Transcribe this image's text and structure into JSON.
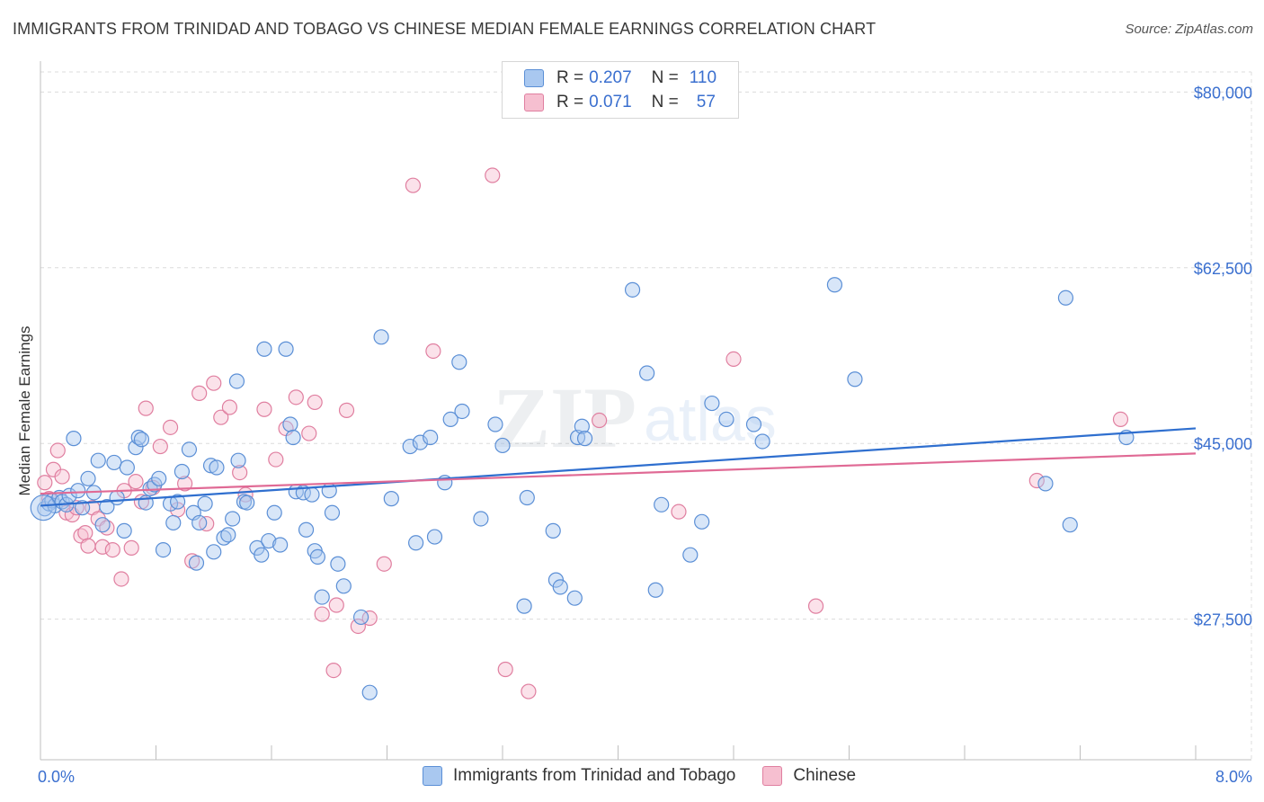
{
  "header": {
    "title": "IMMIGRANTS FROM TRINIDAD AND TOBAGO VS CHINESE MEDIAN FEMALE EARNINGS CORRELATION CHART",
    "source": "Source: ZipAtlas.com"
  },
  "legend": {
    "rows": [
      {
        "r_label": "R =",
        "r_value": "0.207",
        "n_label": "N =",
        "n_value": "110"
      },
      {
        "r_label": "R =",
        "r_value": "0.071",
        "n_label": "N =",
        "n_value": "57"
      }
    ]
  },
  "watermark": {
    "zip": "ZIP",
    "atlas": "atlas"
  },
  "chart_data": {
    "type": "scatter",
    "title": "IMMIGRANTS FROM TRINIDAD AND TOBAGO VS CHINESE MEDIAN FEMALE EARNINGS CORRELATION CHART",
    "xlabel": "",
    "ylabel": "Median Female Earnings",
    "xlim": [
      0,
      8
    ],
    "ylim": [
      13500,
      82000
    ],
    "x_tick_labels": [
      {
        "value": 0,
        "label": "0.0%"
      },
      {
        "value": 8,
        "label": "8.0%"
      }
    ],
    "y_ticks": [
      {
        "value": 27500,
        "label": "$27,500"
      },
      {
        "value": 45000,
        "label": "$45,000"
      },
      {
        "value": 62500,
        "label": "$62,500"
      },
      {
        "value": 80000,
        "label": "$80,000"
      }
    ],
    "colors": {
      "blue_fill": "#a9c8f0",
      "blue_stroke": "#5b8fd6",
      "blue_line": "#2f6fcf",
      "pink_fill": "#f6bfd0",
      "pink_stroke": "#e07fa0",
      "pink_line": "#e06a95",
      "axis_text": "#3a6fcf"
    },
    "series": [
      {
        "name": "Immigrants from Trinidad and Tobago",
        "color": "#5b8fd6",
        "trend": {
          "x": [
            0,
            8
          ],
          "y": [
            38800,
            46500
          ]
        },
        "points": [
          [
            0.03,
            38500
          ],
          [
            0.06,
            39000
          ],
          [
            0.08,
            39300
          ],
          [
            0.1,
            38800
          ],
          [
            0.13,
            39600
          ],
          [
            0.15,
            39200
          ],
          [
            0.18,
            38900
          ],
          [
            0.2,
            39800
          ],
          [
            0.23,
            45500
          ],
          [
            0.26,
            40300
          ],
          [
            0.29,
            38600
          ],
          [
            0.33,
            41500
          ],
          [
            0.37,
            40100
          ],
          [
            0.4,
            43300
          ],
          [
            0.43,
            36900
          ],
          [
            0.46,
            38700
          ],
          [
            0.51,
            43100
          ],
          [
            0.53,
            39600
          ],
          [
            0.58,
            36300
          ],
          [
            0.6,
            42600
          ],
          [
            0.66,
            44600
          ],
          [
            0.68,
            45600
          ],
          [
            0.7,
            45400
          ],
          [
            0.73,
            39100
          ],
          [
            0.76,
            40500
          ],
          [
            0.79,
            40900
          ],
          [
            0.82,
            41500
          ],
          [
            0.85,
            34400
          ],
          [
            0.9,
            39000
          ],
          [
            0.92,
            37100
          ],
          [
            0.95,
            39200
          ],
          [
            0.98,
            42200
          ],
          [
            1.03,
            44400
          ],
          [
            1.06,
            38100
          ],
          [
            1.08,
            33100
          ],
          [
            1.1,
            37100
          ],
          [
            1.14,
            39000
          ],
          [
            1.18,
            42800
          ],
          [
            1.2,
            34200
          ],
          [
            1.22,
            42600
          ],
          [
            1.27,
            35600
          ],
          [
            1.3,
            35900
          ],
          [
            1.33,
            37500
          ],
          [
            1.36,
            51200
          ],
          [
            1.37,
            43300
          ],
          [
            1.41,
            39200
          ],
          [
            1.43,
            39100
          ],
          [
            1.5,
            34600
          ],
          [
            1.53,
            33900
          ],
          [
            1.55,
            54400
          ],
          [
            1.58,
            35300
          ],
          [
            1.62,
            38100
          ],
          [
            1.66,
            34900
          ],
          [
            1.7,
            54400
          ],
          [
            1.73,
            46900
          ],
          [
            1.75,
            45600
          ],
          [
            1.77,
            40200
          ],
          [
            1.82,
            40100
          ],
          [
            1.84,
            36400
          ],
          [
            1.88,
            39900
          ],
          [
            1.9,
            34300
          ],
          [
            1.92,
            33700
          ],
          [
            1.95,
            29700
          ],
          [
            2.0,
            40300
          ],
          [
            2.02,
            38100
          ],
          [
            2.06,
            33000
          ],
          [
            2.1,
            30800
          ],
          [
            2.22,
            27700
          ],
          [
            2.28,
            20200
          ],
          [
            2.36,
            55600
          ],
          [
            2.43,
            39500
          ],
          [
            2.56,
            44700
          ],
          [
            2.6,
            35100
          ],
          [
            2.63,
            45100
          ],
          [
            2.7,
            45600
          ],
          [
            2.73,
            35700
          ],
          [
            2.8,
            41100
          ],
          [
            2.84,
            47400
          ],
          [
            2.9,
            53100
          ],
          [
            2.92,
            48200
          ],
          [
            3.05,
            37500
          ],
          [
            3.15,
            46900
          ],
          [
            3.2,
            44800
          ],
          [
            3.35,
            28800
          ],
          [
            3.37,
            39600
          ],
          [
            3.55,
            36300
          ],
          [
            3.57,
            31400
          ],
          [
            3.6,
            30700
          ],
          [
            3.7,
            29600
          ],
          [
            3.72,
            45600
          ],
          [
            3.75,
            46700
          ],
          [
            3.77,
            45500
          ],
          [
            4.1,
            60300
          ],
          [
            4.2,
            52000
          ],
          [
            4.26,
            30400
          ],
          [
            4.3,
            38900
          ],
          [
            4.5,
            33900
          ],
          [
            4.58,
            37200
          ],
          [
            4.65,
            49000
          ],
          [
            4.75,
            47400
          ],
          [
            4.94,
            46900
          ],
          [
            5.0,
            45200
          ],
          [
            5.5,
            60800
          ],
          [
            5.64,
            51400
          ],
          [
            6.96,
            41000
          ],
          [
            7.1,
            59500
          ],
          [
            7.13,
            36900
          ],
          [
            7.52,
            45600
          ]
        ]
      },
      {
        "name": "Chinese",
        "color": "#e07fa0",
        "trend": {
          "x": [
            0,
            8
          ],
          "y": [
            40000,
            44000
          ]
        },
        "points": [
          [
            0.03,
            41100
          ],
          [
            0.06,
            39500
          ],
          [
            0.09,
            42400
          ],
          [
            0.12,
            44300
          ],
          [
            0.15,
            41700
          ],
          [
            0.18,
            38100
          ],
          [
            0.22,
            37900
          ],
          [
            0.25,
            38600
          ],
          [
            0.28,
            35800
          ],
          [
            0.31,
            36100
          ],
          [
            0.33,
            34800
          ],
          [
            0.36,
            38600
          ],
          [
            0.4,
            37500
          ],
          [
            0.43,
            34700
          ],
          [
            0.46,
            36600
          ],
          [
            0.5,
            34400
          ],
          [
            0.56,
            31500
          ],
          [
            0.58,
            40300
          ],
          [
            0.63,
            34600
          ],
          [
            0.66,
            41200
          ],
          [
            0.7,
            39200
          ],
          [
            0.73,
            48500
          ],
          [
            0.78,
            40600
          ],
          [
            0.83,
            44700
          ],
          [
            0.9,
            46600
          ],
          [
            0.95,
            38400
          ],
          [
            1.0,
            41000
          ],
          [
            1.05,
            33300
          ],
          [
            1.1,
            50000
          ],
          [
            1.15,
            37000
          ],
          [
            1.2,
            51000
          ],
          [
            1.25,
            47600
          ],
          [
            1.31,
            48600
          ],
          [
            1.38,
            42100
          ],
          [
            1.42,
            39900
          ],
          [
            1.55,
            48400
          ],
          [
            1.63,
            43400
          ],
          [
            1.7,
            46500
          ],
          [
            1.77,
            49600
          ],
          [
            1.86,
            46000
          ],
          [
            1.9,
            49100
          ],
          [
            1.95,
            28000
          ],
          [
            2.03,
            22400
          ],
          [
            2.05,
            28900
          ],
          [
            2.12,
            48300
          ],
          [
            2.2,
            26800
          ],
          [
            2.28,
            27600
          ],
          [
            2.38,
            33000
          ],
          [
            2.58,
            70700
          ],
          [
            2.72,
            54200
          ],
          [
            3.13,
            71700
          ],
          [
            3.22,
            22500
          ],
          [
            3.38,
            20300
          ],
          [
            3.87,
            47300
          ],
          [
            4.42,
            38200
          ],
          [
            4.8,
            53400
          ],
          [
            5.37,
            28800
          ],
          [
            6.9,
            41300
          ],
          [
            7.48,
            47400
          ]
        ]
      }
    ]
  },
  "bottom_legend": {
    "items": [
      "Immigrants from Trinidad and Tobago",
      "Chinese"
    ]
  }
}
